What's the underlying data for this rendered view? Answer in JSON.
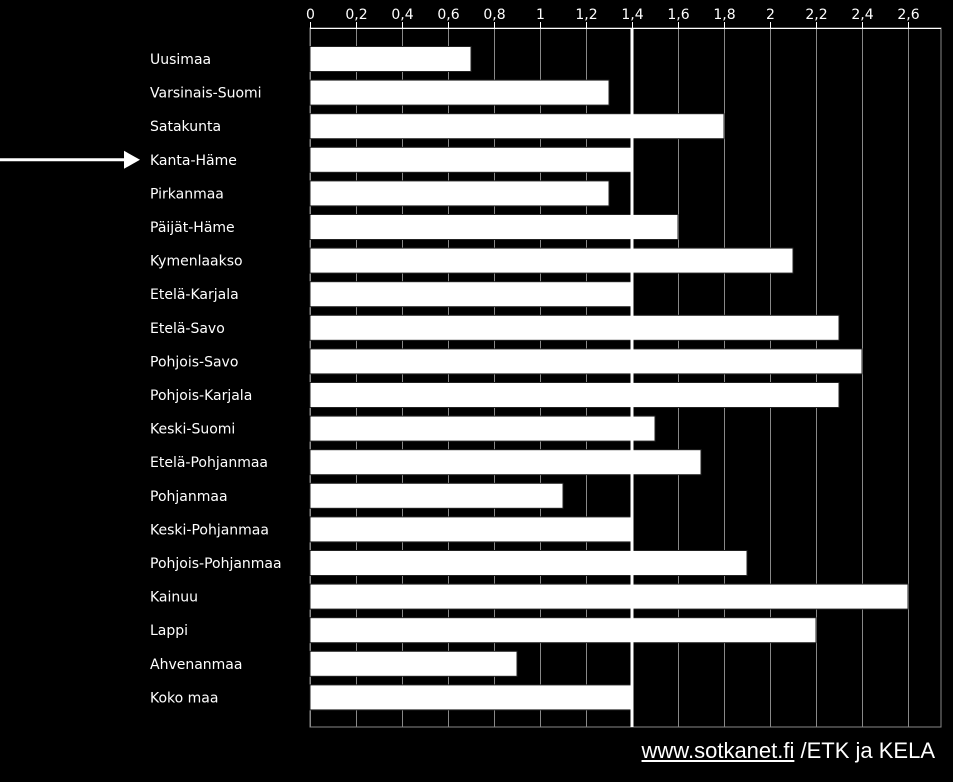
{
  "chart_data": {
    "type": "bar",
    "orientation": "horizontal",
    "categories": [
      "Uusimaa",
      "Varsinais-Suomi",
      "Satakunta",
      "Kanta-Häme",
      "Pirkanmaa",
      "Päijät-Häme",
      "Kymenlaakso",
      "Etelä-Karjala",
      "Etelä-Savo",
      "Pohjois-Savo",
      "Pohjois-Karjala",
      "Keski-Suomi",
      "Etelä-Pohjanmaa",
      "Pohjanmaa",
      "Keski-Pohjanmaa",
      "Pohjois-Pohjanmaa",
      "Kainuu",
      "Lappi",
      "Ahvenanmaa",
      "Koko maa"
    ],
    "values": [
      0.7,
      1.3,
      1.8,
      1.4,
      1.3,
      1.6,
      2.1,
      1.4,
      2.3,
      2.4,
      2.3,
      1.5,
      1.7,
      1.1,
      1.4,
      1.9,
      2.6,
      2.2,
      0.9,
      1.4
    ],
    "xlim": [
      0,
      2.7
    ],
    "ticks": [
      "0",
      "0,2",
      "0,4",
      "0,6",
      "0,8",
      "1",
      "1,2",
      "1,4",
      "1,6",
      "1,8",
      "2",
      "2,2",
      "2,4",
      "2,6"
    ],
    "tick_values": [
      0,
      0.2,
      0.4,
      0.6,
      0.8,
      1,
      1.2,
      1.4,
      1.6,
      1.8,
      2,
      2.2,
      2.4,
      2.6
    ],
    "reference_line": 1.4,
    "highlighted_category": "Kanta-Häme",
    "grid": true,
    "colors": {
      "background": "#000000",
      "bars": "#ffffff",
      "grid": "#888888",
      "text": "#ffffff"
    }
  },
  "footer": {
    "link": "www.sotkanet.fi",
    "suffix": " /ETK ja KELA"
  },
  "icons": {
    "arrow": "arrow-right-icon"
  }
}
